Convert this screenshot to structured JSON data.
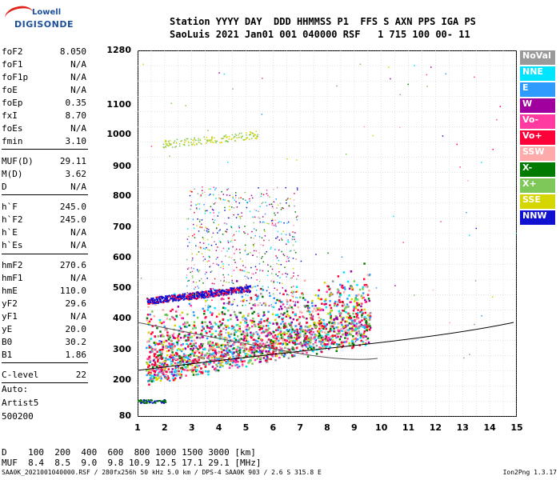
{
  "logo": {
    "line1": "Lowell",
    "line2": "DIGISONDE"
  },
  "header": {
    "row1": "Station YYYY DAY  DDD HHMMSS P1  FFS S AXN PPS IGA PS",
    "row2": "SaoLuis 2021 Jan01 001 040000 RSF   1 715 100 00- 11"
  },
  "params": [
    {
      "k": "foF2",
      "v": "8.050"
    },
    {
      "k": "foF1",
      "v": "N/A"
    },
    {
      "k": "foF1p",
      "v": "N/A"
    },
    {
      "k": "foE",
      "v": "N/A"
    },
    {
      "k": "foEp",
      "v": "0.35"
    },
    {
      "k": "fxI",
      "v": "8.70"
    },
    {
      "k": "foEs",
      "v": "N/A"
    },
    {
      "k": "fmin",
      "v": "3.10"
    },
    {
      "k": "MUF(D)",
      "v": "29.11"
    },
    {
      "k": "M(D)",
      "v": "3.62"
    },
    {
      "k": "D",
      "v": "N/A"
    },
    {
      "k": "h`F",
      "v": "245.0"
    },
    {
      "k": "h`F2",
      "v": "245.0"
    },
    {
      "k": "h`E",
      "v": "N/A"
    },
    {
      "k": "h`Es",
      "v": "N/A"
    },
    {
      "k": "hmF2",
      "v": "270.6"
    },
    {
      "k": "hmF1",
      "v": "N/A"
    },
    {
      "k": "hmE",
      "v": "110.0"
    },
    {
      "k": "yF2",
      "v": "29.6"
    },
    {
      "k": "yF1",
      "v": "N/A"
    },
    {
      "k": "yE",
      "v": "20.0"
    },
    {
      "k": "B0",
      "v": "30.2"
    },
    {
      "k": "B1",
      "v": "1.86"
    },
    {
      "k": "C-level",
      "v": "22"
    }
  ],
  "auto": {
    "l1": "Auto:",
    "l2": "Artist5",
    "l3": "500200"
  },
  "yticks": [
    "1280",
    "1100",
    "1000",
    "900",
    "800",
    "700",
    "600",
    "500",
    "400",
    "300",
    "200",
    "80"
  ],
  "xticks": [
    "1",
    "2",
    "3",
    "4",
    "5",
    "6",
    "7",
    "8",
    "9",
    "10",
    "11",
    "12",
    "13",
    "14",
    "15"
  ],
  "legend": [
    {
      "label": "NoVal",
      "color": "#9a9a9a"
    },
    {
      "label": "NNE",
      "color": "#00e5ff"
    },
    {
      "label": "E",
      "color": "#2f9bff"
    },
    {
      "label": "W",
      "color": "#a0009e"
    },
    {
      "label": "Vo-",
      "color": "#ff3aa0"
    },
    {
      "label": "Vo+",
      "color": "#ff0038"
    },
    {
      "label": "SSW",
      "color": "#ffaaaa"
    },
    {
      "label": "X-",
      "color": "#007a00"
    },
    {
      "label": "X+",
      "color": "#7ec85a"
    },
    {
      "label": "SSE",
      "color": "#d5d500"
    },
    {
      "label": "NNW",
      "color": "#1010d0"
    }
  ],
  "footer": {
    "row1": "D    100  200  400  600  800 1000 1500 3000 [km]",
    "row2": "MUF  8.4  8.5  9.0  9.8 10.9 12.5 17.1 29.1 [MHz]",
    "file": "SAA0K_2021001040000.RSF / 280fx256h 50 kHz 5.0 km / DPS-4 SAA0K 903 / 2.6 S 315.8 E",
    "version": "Ion2Png 1.3.17"
  }
}
